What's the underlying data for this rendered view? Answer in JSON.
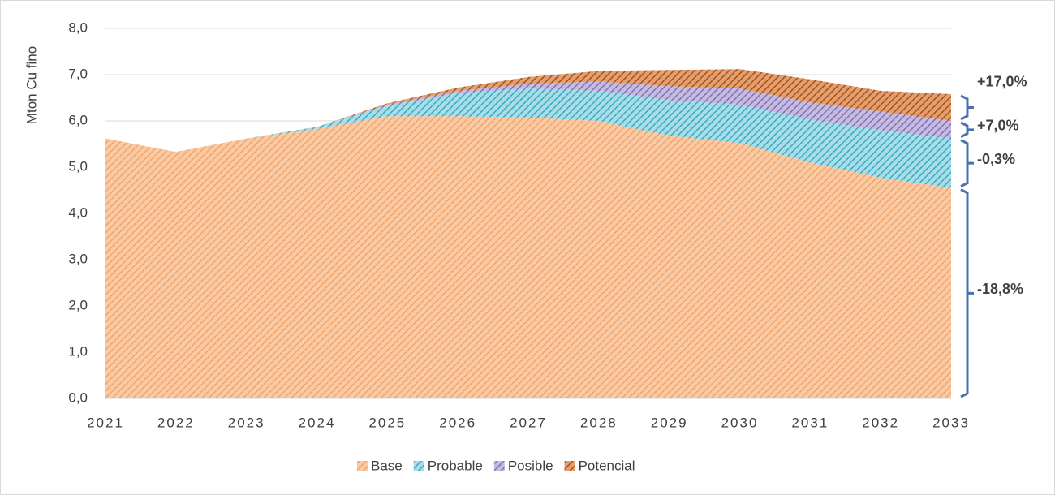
{
  "chart_data": {
    "type": "stacked_area",
    "y_axis_label": "Mton Cu fino",
    "categories": [
      "2021",
      "2022",
      "2023",
      "2024",
      "2025",
      "2026",
      "2027",
      "2028",
      "2029",
      "2030",
      "2031",
      "2032",
      "2033"
    ],
    "series": [
      {
        "name": "Base",
        "color": "#f4b183",
        "values": [
          5.62,
          5.33,
          5.62,
          5.83,
          6.1,
          6.1,
          6.07,
          6.0,
          5.68,
          5.52,
          5.1,
          4.77,
          4.55
        ]
      },
      {
        "name": "Probable",
        "color": "#4fb8cc",
        "values": [
          0,
          0,
          0,
          0.04,
          0.23,
          0.5,
          0.63,
          0.65,
          0.77,
          0.83,
          0.93,
          1.03,
          1.07
        ]
      },
      {
        "name": "Posible",
        "color": "#8e7cc3",
        "values": [
          0,
          0,
          0,
          0,
          0.02,
          0.05,
          0.1,
          0.2,
          0.3,
          0.35,
          0.37,
          0.4,
          0.38
        ]
      },
      {
        "name": "Potencial",
        "color": "#c55a11",
        "values": [
          0,
          0,
          0,
          0,
          0.03,
          0.07,
          0.15,
          0.23,
          0.35,
          0.42,
          0.5,
          0.45,
          0.58
        ]
      }
    ],
    "ylim": [
      0,
      8
    ],
    "yticks": [
      {
        "value": 0,
        "label": "0,0"
      },
      {
        "value": 1,
        "label": "1,0"
      },
      {
        "value": 2,
        "label": "2,0"
      },
      {
        "value": 3,
        "label": "3,0"
      },
      {
        "value": 4,
        "label": "4,0"
      },
      {
        "value": 5,
        "label": "5,0"
      },
      {
        "value": 6,
        "label": "6,0"
      },
      {
        "value": 7,
        "label": "7,0"
      },
      {
        "value": 8,
        "label": "8,0"
      }
    ],
    "grid": true,
    "legend": "bottom",
    "annotations": [
      "+17,0%",
      "+7,0%",
      "-0,3%",
      "-18,8%"
    ]
  }
}
